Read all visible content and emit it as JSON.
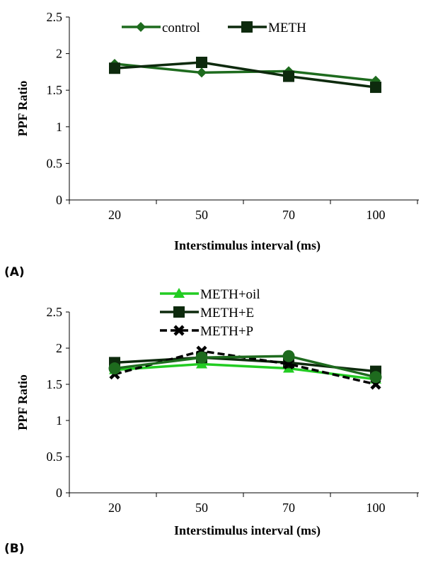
{
  "chart_data": [
    {
      "type": "line",
      "panel_label": "(A)",
      "xlabel": "Interstimulus interval (ms)",
      "ylabel": "PPF Ratio",
      "categories": [
        "20",
        "50",
        "70",
        "100"
      ],
      "yticks": [
        "0",
        "0.5",
        "1",
        "1.5",
        "2",
        "2.5"
      ],
      "ylim": [
        0,
        2.5
      ],
      "legend_position": "top",
      "series": [
        {
          "name": "control",
          "values": [
            1.86,
            1.74,
            1.76,
            1.63
          ],
          "color": "#1e6b1e",
          "marker": "diamond"
        },
        {
          "name": "METH",
          "values": [
            1.8,
            1.88,
            1.69,
            1.54
          ],
          "color": "#0d2a0d",
          "marker": "square"
        }
      ]
    },
    {
      "type": "line",
      "panel_label": "(B)",
      "xlabel": "Interstimulus interval (ms)",
      "ylabel": "PPF Ratio",
      "categories": [
        "20",
        "50",
        "70",
        "100"
      ],
      "yticks": [
        "0",
        "0.5",
        "1",
        "1.5",
        "2",
        "2.5"
      ],
      "ylim": [
        0,
        2.5
      ],
      "legend_position": "top",
      "series": [
        {
          "name": "METH+oil",
          "values": [
            1.7,
            1.78,
            1.72,
            1.57
          ],
          "color": "#22cc22",
          "marker": "triangle"
        },
        {
          "name": "METH+E",
          "values": [
            1.8,
            1.87,
            1.8,
            1.68
          ],
          "color": "#0d2a0d",
          "marker": "square"
        },
        {
          "name": "METH+P",
          "values": [
            1.64,
            1.96,
            1.78,
            1.5
          ],
          "color": "#000000",
          "marker": "x",
          "dashed": true
        },
        {
          "name": "",
          "values": [
            1.72,
            1.87,
            1.89,
            1.6
          ],
          "color": "#1e6b1e",
          "marker": "circle"
        }
      ]
    }
  ]
}
